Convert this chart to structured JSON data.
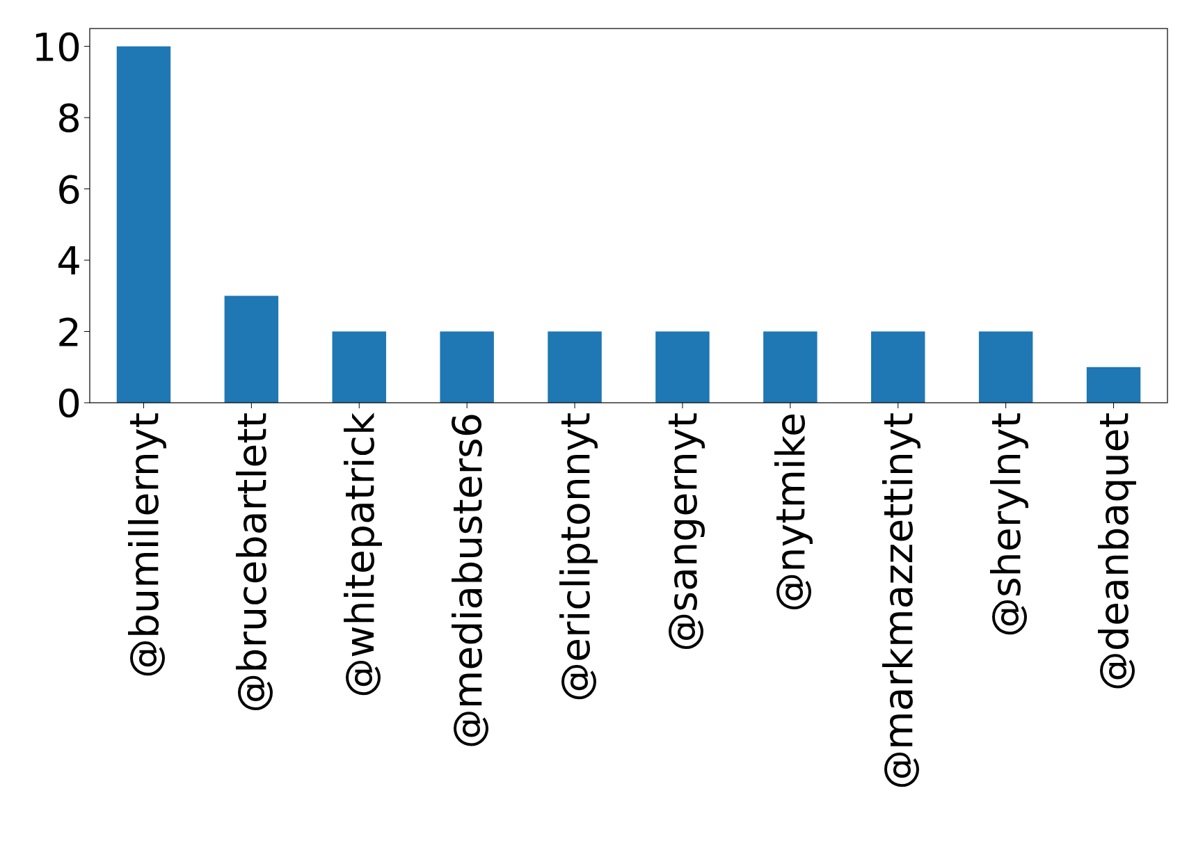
{
  "chart_data": {
    "type": "bar",
    "categories": [
      "@bumillernyt",
      "@brucebartlett",
      "@whitepatrick",
      "@mediabusters6",
      "@ericliptonnyt",
      "@sangernyt",
      "@nytmike",
      "@markmazzettinyt",
      "@sherylnyt",
      "@deanbaquet"
    ],
    "values": [
      10,
      3,
      2,
      2,
      2,
      2,
      2,
      2,
      2,
      1
    ],
    "color": "#1f77b4",
    "ylim": [
      0,
      10.5
    ],
    "yticks": [
      0,
      2,
      4,
      6,
      8,
      10
    ],
    "grid": false
  }
}
